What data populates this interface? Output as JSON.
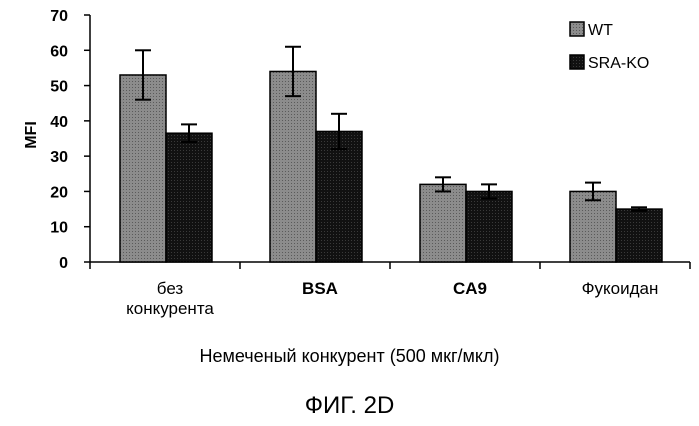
{
  "chart_data": {
    "type": "bar",
    "categories": [
      "без конкурента",
      "BSA",
      "CA9",
      "Фукоидан"
    ],
    "category_lines": [
      [
        "без",
        "конкурента"
      ],
      [
        "BSA"
      ],
      [
        "CA9"
      ],
      [
        "Фукоидан"
      ]
    ],
    "series": [
      {
        "name": "WT",
        "values": [
          53,
          54,
          22,
          20
        ],
        "errors": [
          7,
          7,
          2,
          2.5
        ],
        "color": "#8c8c8c"
      },
      {
        "name": "SRA-KO",
        "values": [
          36.5,
          37,
          20,
          15
        ],
        "errors": [
          2.5,
          5,
          2,
          0.5
        ],
        "color": "#111111"
      }
    ],
    "title": "",
    "xlabel": "Немеченый конкурент (500 мкг/мкл)",
    "ylabel": "MFI",
    "ylim": [
      0,
      70
    ],
    "yticks": [
      0,
      10,
      20,
      30,
      40,
      50,
      60,
      70
    ],
    "grid": false,
    "legend_position": "top-right"
  },
  "figure_caption": "ФИГ. 2D"
}
